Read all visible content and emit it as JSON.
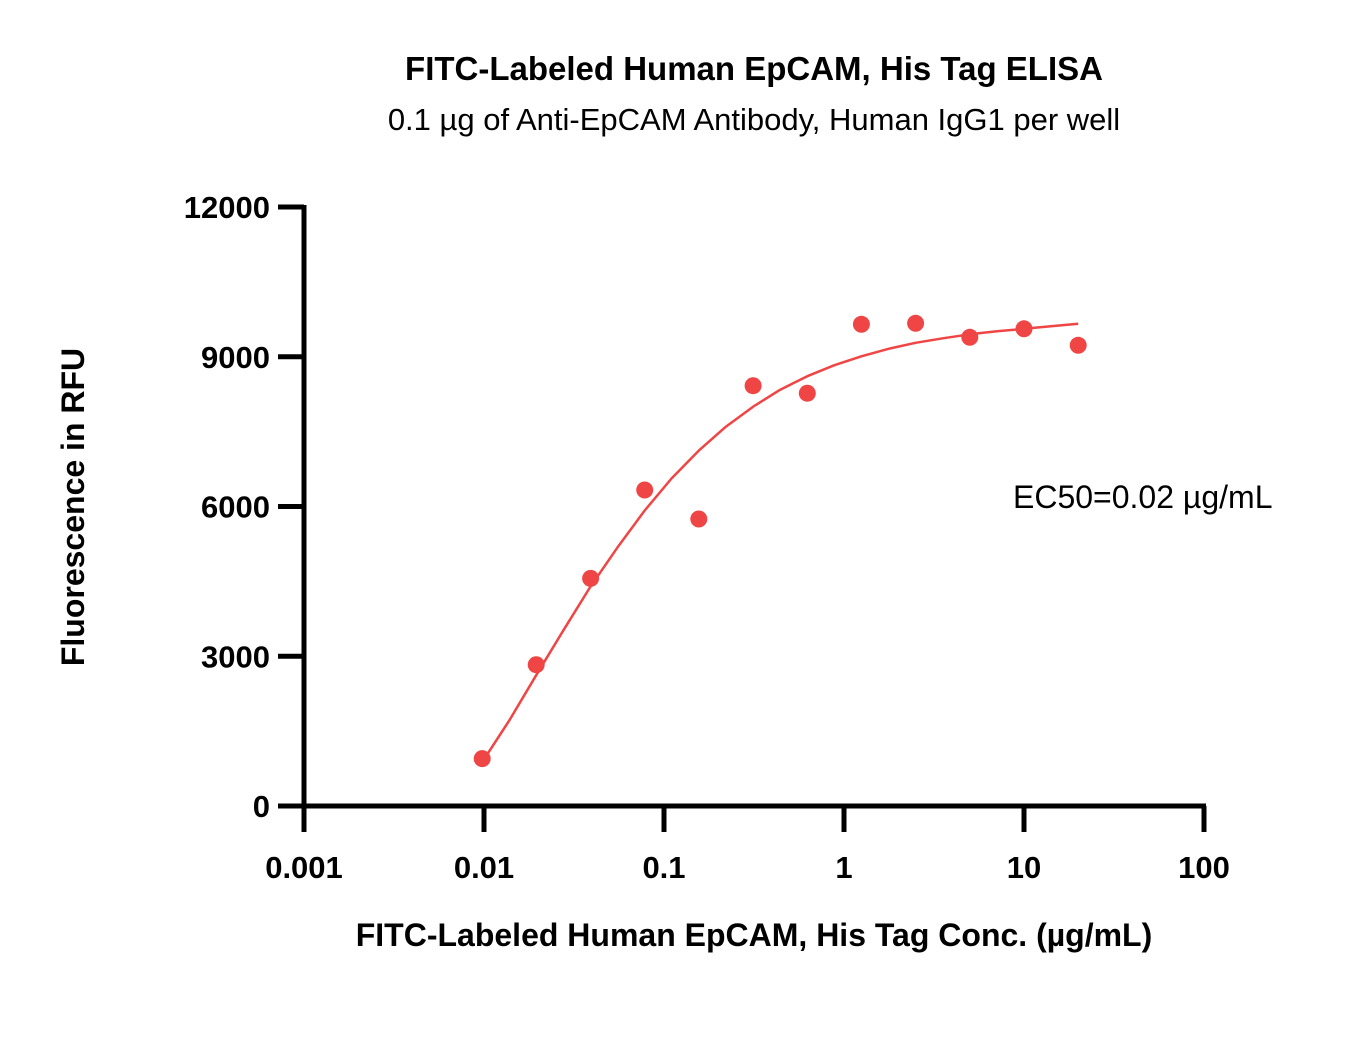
{
  "chart_data": {
    "type": "scatter",
    "title": "FITC-Labeled Human EpCAM, His Tag ELISA",
    "subtitle": "0.1 µg of Anti-EpCAM Antibody, Human IgG1 per well",
    "xlabel": "FITC-Labeled Human EpCAM, His Tag Conc. (µg/mL)",
    "ylabel": "Fluorescence in RFU",
    "xscale": "log",
    "xlim": [
      0.001,
      100
    ],
    "ylim": [
      0,
      12000
    ],
    "x_ticks": [
      0.001,
      0.01,
      0.1,
      1,
      10,
      100
    ],
    "x_tick_labels": [
      "0.001",
      "0.01",
      "0.1",
      "1",
      "10",
      "100"
    ],
    "y_ticks": [
      0,
      3000,
      6000,
      9000,
      12000
    ],
    "y_tick_labels": [
      "0",
      "3000",
      "6000",
      "9000",
      "12000"
    ],
    "grid": false,
    "color": "#f04545",
    "points": {
      "x": [
        0.00977,
        0.0195,
        0.0391,
        0.0781,
        0.156,
        0.3125,
        0.625,
        1.25,
        2.5,
        5,
        10,
        20
      ],
      "y": [
        950,
        2830,
        4560,
        6330,
        5750,
        8420,
        8270,
        9650,
        9670,
        9390,
        9560,
        9230
      ]
    },
    "fit_curve": {
      "x": [
        0.00977,
        0.0138,
        0.0195,
        0.0276,
        0.0391,
        0.0552,
        0.0781,
        0.11,
        0.156,
        0.221,
        0.3125,
        0.442,
        0.625,
        0.884,
        1.25,
        1.77,
        2.5,
        3.54,
        5,
        7.07,
        10,
        14.1,
        20
      ],
      "y": [
        880,
        1710,
        2620,
        3520,
        4400,
        5180,
        5920,
        6560,
        7120,
        7600,
        8000,
        8340,
        8610,
        8830,
        9010,
        9160,
        9280,
        9370,
        9450,
        9510,
        9560,
        9610,
        9660
      ]
    },
    "annotation": "EC50=0.02 µg/mL"
  }
}
